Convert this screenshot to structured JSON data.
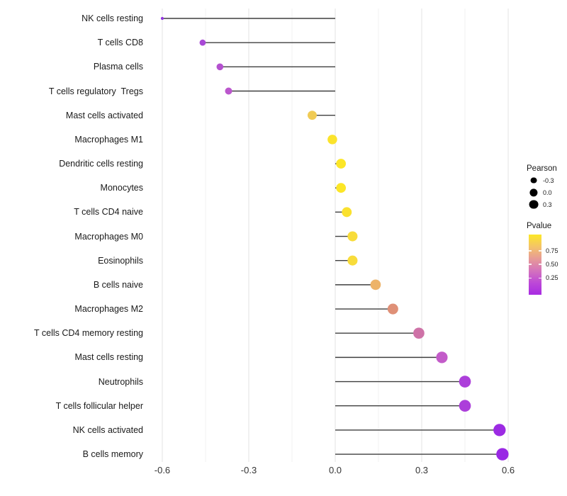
{
  "chart_data": {
    "type": "scatter",
    "variant": "horizontal-lollipop",
    "title": "",
    "xlabel": "",
    "ylabel": "",
    "grid": "vertical-major-and-minor",
    "xlim": [
      -0.66,
      0.67
    ],
    "x_ticks": [
      -0.6,
      -0.3,
      0.0,
      0.3,
      0.6
    ],
    "x_tick_labels": [
      "-0.6",
      "-0.3",
      "0.0",
      "0.3",
      "0.6"
    ],
    "stem_baseline": 0.0,
    "categories": [
      "NK cells resting",
      "T cells CD8",
      "Plasma cells",
      "T cells regulatory  Tregs",
      "Mast cells activated",
      "Macrophages M1",
      "Dendritic cells resting",
      "Monocytes",
      "T cells CD4 naive",
      "Macrophages M0",
      "Eosinophils",
      "B cells naive",
      "Macrophages M2",
      "T cells CD4 memory resting",
      "Mast cells resting",
      "Neutrophils",
      "T cells follicular helper",
      "NK cells activated",
      "B cells memory"
    ],
    "series": [
      {
        "name": "Pearson",
        "values": [
          -0.6,
          -0.46,
          -0.4,
          -0.37,
          -0.08,
          -0.01,
          0.02,
          0.02,
          0.04,
          0.06,
          0.06,
          0.14,
          0.2,
          0.29,
          0.37,
          0.45,
          0.45,
          0.57,
          0.58
        ]
      }
    ],
    "point_colors": [
      "#9136DF",
      "#A848D6",
      "#B451CF",
      "#BB57CD",
      "#F0CB55",
      "#FBE32B",
      "#FCE627",
      "#FCE627",
      "#FAE12F",
      "#F8DC3A",
      "#F8DC3A",
      "#EDB369",
      "#DF9077",
      "#CE72A7",
      "#C35BC9",
      "#AC3FDA",
      "#AC3FDA",
      "#9C2BE3",
      "#9928E4"
    ],
    "size_encoding": {
      "variable": "Pearson",
      "larger_is_bigger": true
    },
    "color_encoding": {
      "variable": "Pvalue",
      "high_color": "#FCE726",
      "low_color": "#A82BE2"
    },
    "legend_position": "right",
    "legend": {
      "size_legend": {
        "title": "Pearson",
        "entries": [
          {
            "label": "-0.3",
            "value": -0.3
          },
          {
            "label": "0.0",
            "value": 0.0
          },
          {
            "label": "0.3",
            "value": 0.3
          }
        ]
      },
      "color_legend": {
        "title": "Pvalue",
        "entries": [
          {
            "label": "0.75",
            "value": 0.75
          },
          {
            "label": "0.50",
            "value": 0.5
          },
          {
            "label": "0.25",
            "value": 0.25
          }
        ],
        "gradient_stops": [
          "#FCE726",
          "#F4C468",
          "#E79B96",
          "#D473BC",
          "#BD49D7",
          "#A82BE2"
        ]
      }
    },
    "style": {
      "stem_color": "#3F3F3F",
      "major_grid_color": "#E3E3E3",
      "minor_grid_color": "#F1F1F1",
      "background": "#FFFFFF"
    }
  }
}
